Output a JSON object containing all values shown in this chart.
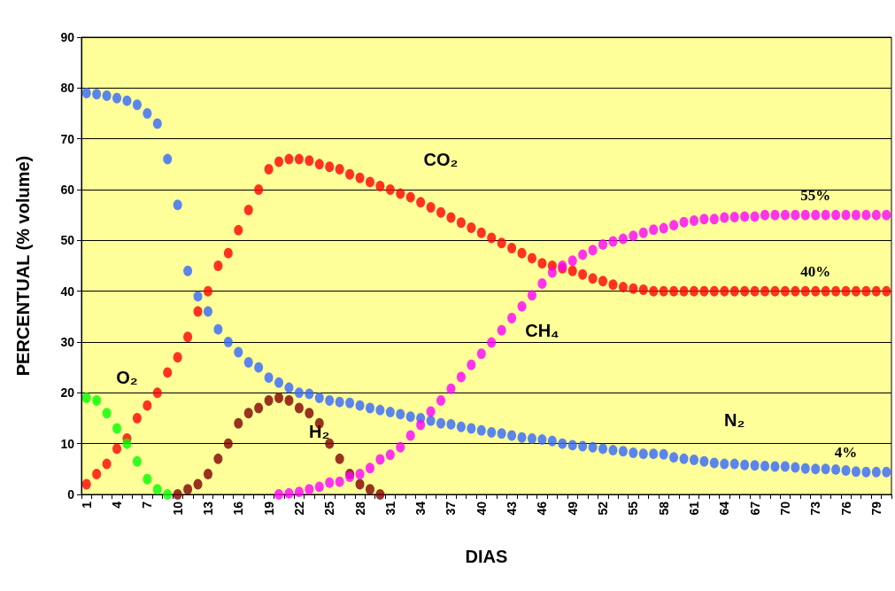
{
  "chart_data": {
    "type": "scatter",
    "xlabel": "DIAS",
    "ylabel": "PERCENTUAL (% volume)",
    "categories": [
      "1",
      null,
      null,
      "4",
      null,
      null,
      "7",
      null,
      null,
      "10",
      null,
      null,
      "13",
      null,
      null,
      "16",
      null,
      null,
      "19",
      null,
      null,
      "22",
      null,
      null,
      "25",
      null,
      null,
      "28",
      null,
      null,
      "31",
      null,
      null,
      "34",
      null,
      null,
      "37",
      null,
      null,
      "40",
      null,
      null,
      "43",
      null,
      null,
      "46",
      null,
      null,
      "49",
      null,
      null,
      "52",
      null,
      null,
      "55",
      null,
      null,
      "58",
      null,
      null,
      "61",
      null,
      null,
      "64",
      null,
      null,
      "67",
      null,
      null,
      "70",
      null,
      null,
      "73",
      null,
      null,
      "76",
      null,
      null,
      "79",
      null
    ],
    "ylim": [
      0,
      90
    ],
    "yticks": [
      0,
      10,
      20,
      30,
      40,
      50,
      60,
      70,
      80,
      90
    ],
    "grid": "y",
    "legend": false,
    "marker": "circle",
    "series": [
      {
        "name": "N₂",
        "color": "#3366ff",
        "values": [
          79,
          78.8,
          78.5,
          78,
          77.5,
          76.7,
          75,
          73,
          66,
          57,
          44,
          39,
          36,
          32.5,
          30,
          28,
          26,
          25,
          23,
          22,
          21,
          20,
          19.8,
          19,
          18.5,
          18.2,
          18,
          17.5,
          17,
          16.6,
          16.2,
          15.8,
          15.3,
          15,
          14.5,
          14,
          13.8,
          13.3,
          13,
          12.6,
          12.2,
          12,
          11.6,
          11.2,
          11,
          10.8,
          10.5,
          10,
          9.7,
          9.5,
          9.3,
          9,
          8.7,
          8.5,
          8.2,
          8,
          8,
          7.9,
          7.3,
          7,
          6.8,
          6.5,
          6.2,
          6,
          6,
          5.8,
          5.7,
          5.6,
          5.5,
          5.5,
          5.3,
          5.1,
          5,
          5,
          4.9,
          4.7,
          4.5,
          4.4,
          4.4,
          4.4
        ]
      },
      {
        "name": "CO₂",
        "color": "#ff0000",
        "values": [
          2,
          4,
          6,
          9,
          11,
          15,
          17.5,
          20,
          24,
          27,
          31,
          36,
          40,
          45,
          47.5,
          52,
          56,
          60,
          64,
          65.5,
          66,
          66,
          65.7,
          65,
          64.5,
          64,
          63,
          62.3,
          61.5,
          60.7,
          60,
          59.2,
          58.5,
          57.5,
          56.5,
          55.5,
          54.5,
          53.5,
          52.5,
          51.5,
          50.5,
          49.5,
          48.5,
          47.5,
          46.5,
          45.5,
          45,
          44.5,
          44,
          43.3,
          42.5,
          42,
          41.3,
          40.8,
          40.5,
          40.3,
          40,
          40,
          40,
          40,
          40,
          40,
          40,
          40,
          40,
          40,
          40,
          40,
          40,
          40,
          40,
          40,
          40,
          40,
          40,
          40,
          40,
          40,
          40,
          40
        ]
      },
      {
        "name": "O₂",
        "color": "#00ff00",
        "values": [
          19,
          18.5,
          16,
          13,
          10,
          6.5,
          3,
          1,
          0,
          null,
          null,
          null,
          null,
          null,
          null,
          null,
          null,
          null,
          null,
          null,
          null,
          null,
          null,
          null,
          null,
          null,
          null,
          null,
          null,
          null,
          null,
          null,
          null,
          null,
          null,
          null,
          null,
          null,
          null,
          null,
          null,
          null,
          null,
          null,
          null,
          null,
          null,
          null,
          null,
          null,
          null,
          null,
          null,
          null,
          null,
          null,
          null,
          null,
          null,
          null,
          null,
          null,
          null,
          null,
          null,
          null,
          null,
          null,
          null,
          null,
          null,
          null,
          null,
          null,
          null,
          null,
          null,
          null,
          null,
          null
        ]
      },
      {
        "name": "H₂",
        "color": "#800000",
        "values": [
          null,
          null,
          null,
          null,
          null,
          null,
          null,
          null,
          null,
          0,
          1,
          2,
          4,
          7,
          10,
          14,
          16,
          17,
          18.5,
          19,
          18.5,
          17,
          16,
          14,
          10,
          7,
          4,
          2,
          1,
          0,
          null,
          null,
          null,
          null,
          null,
          null,
          null,
          null,
          null,
          null,
          null,
          null,
          null,
          null,
          null,
          null,
          null,
          null,
          null,
          null,
          null,
          null,
          null,
          null,
          null,
          null,
          null,
          null,
          null,
          null,
          null,
          null,
          null,
          null,
          null,
          null,
          null,
          null,
          null,
          null,
          null,
          null,
          null,
          null,
          null,
          null,
          null,
          null,
          null,
          null
        ]
      },
      {
        "name": "CH₄",
        "color": "#ff00ff",
        "values": [
          null,
          null,
          null,
          null,
          null,
          null,
          null,
          null,
          null,
          null,
          null,
          null,
          null,
          null,
          null,
          null,
          null,
          null,
          null,
          0,
          0.2,
          0.5,
          1,
          1.5,
          2.3,
          2.5,
          3.5,
          4,
          5.2,
          6.9,
          7.8,
          9.3,
          11.6,
          13.7,
          16.3,
          18.5,
          20.8,
          23.1,
          25.5,
          27.7,
          29.9,
          32.3,
          34.7,
          37,
          39.2,
          41.5,
          43.7,
          45,
          46,
          47.2,
          48.1,
          49.2,
          49.8,
          50.3,
          50.9,
          51.5,
          52.1,
          52.4,
          53,
          53.6,
          53.9,
          54.2,
          54.2,
          54.5,
          54.6,
          54.7,
          54.7,
          55,
          55,
          55,
          55,
          55,
          55,
          55,
          55,
          55,
          55,
          55,
          55,
          55
        ]
      }
    ],
    "annotations": [
      {
        "text": "55%",
        "x": "73",
        "y": 55
      },
      {
        "text": "40%",
        "x": "73",
        "y": 40
      },
      {
        "text": "4%",
        "x": "76",
        "y": 4.4
      }
    ]
  }
}
